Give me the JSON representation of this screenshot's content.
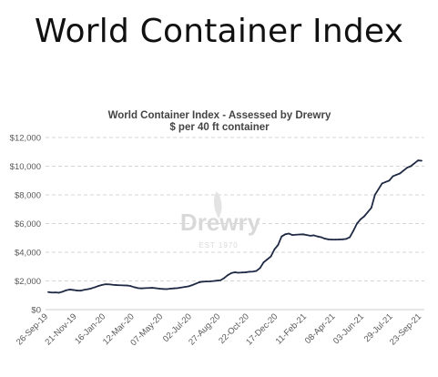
{
  "header": {
    "title": "World Container Index"
  },
  "watermark": {
    "brand": "Drewry",
    "est": "EST 1970"
  },
  "chart_data": {
    "type": "line",
    "title": "World Container Index - Assessed by Drewry",
    "subtitle": "$ per 40 ft container",
    "xlabel": "",
    "ylabel": "",
    "ylim": [
      0,
      12000
    ],
    "y_ticks": [
      0,
      2000,
      4000,
      6000,
      8000,
      10000,
      12000
    ],
    "y_tick_labels": [
      "$0",
      "$2,000",
      "$4,000",
      "$6,000",
      "$8,000",
      "$10,000",
      "$12,000"
    ],
    "x_tick_labels": [
      "26-Sep-19",
      "21-Nov-19",
      "16-Jan-20",
      "12-Mar-20",
      "07-May-20",
      "02-Jul-20",
      "27-Aug-20",
      "22-Oct-20",
      "17-Dec-20",
      "11-Feb-21",
      "08-Apr-21",
      "03-Jun-21",
      "29-Jul-21",
      "23-Sep-21"
    ],
    "grid": "horizontal-dashed",
    "line_color": "#1f2a44",
    "series": [
      {
        "x": [
          "26-Sep-19",
          "03-Oct-19",
          "10-Oct-19",
          "17-Oct-19",
          "24-Oct-19",
          "31-Oct-19",
          "07-Nov-19",
          "14-Nov-19",
          "21-Nov-19",
          "28-Nov-19",
          "05-Dec-19",
          "12-Dec-19",
          "19-Dec-19",
          "26-Dec-19",
          "02-Jan-20",
          "09-Jan-20",
          "16-Jan-20",
          "23-Jan-20",
          "30-Jan-20",
          "06-Feb-20",
          "13-Feb-20",
          "20-Feb-20",
          "27-Feb-20",
          "05-Mar-20",
          "12-Mar-20",
          "19-Mar-20",
          "26-Mar-20",
          "02-Apr-20",
          "09-Apr-20",
          "16-Apr-20",
          "23-Apr-20",
          "30-Apr-20",
          "07-May-20",
          "14-May-20",
          "21-May-20",
          "28-May-20",
          "04-Jun-20",
          "11-Jun-20",
          "18-Jun-20",
          "25-Jun-20",
          "02-Jul-20",
          "09-Jul-20",
          "16-Jul-20",
          "23-Jul-20",
          "30-Jul-20",
          "06-Aug-20",
          "13-Aug-20",
          "20-Aug-20",
          "27-Aug-20",
          "03-Sep-20",
          "10-Sep-20",
          "17-Sep-20",
          "24-Sep-20",
          "01-Oct-20",
          "08-Oct-20",
          "15-Oct-20",
          "22-Oct-20",
          "29-Oct-20",
          "05-Nov-20",
          "12-Nov-20",
          "19-Nov-20",
          "26-Nov-20",
          "03-Dec-20",
          "10-Dec-20",
          "17-Dec-20",
          "24-Dec-20",
          "31-Dec-20",
          "07-Jan-21",
          "14-Jan-21",
          "21-Jan-21",
          "28-Jan-21",
          "04-Feb-21",
          "11-Feb-21",
          "18-Feb-21",
          "25-Feb-21",
          "04-Mar-21",
          "11-Mar-21",
          "18-Mar-21",
          "25-Mar-21",
          "01-Apr-21",
          "08-Apr-21",
          "15-Apr-21",
          "22-Apr-21",
          "29-Apr-21",
          "06-May-21",
          "13-May-21",
          "20-May-21",
          "27-May-21",
          "03-Jun-21",
          "10-Jun-21",
          "17-Jun-21",
          "24-Jun-21",
          "01-Jul-21",
          "08-Jul-21",
          "15-Jul-21",
          "22-Jul-21",
          "29-Jul-21",
          "05-Aug-21",
          "12-Aug-21",
          "19-Aug-21",
          "26-Aug-21",
          "02-Sep-21",
          "09-Sep-21",
          "16-Sep-21",
          "23-Sep-21"
        ],
        "values": [
          1220,
          1190,
          1200,
          1180,
          1250,
          1350,
          1400,
          1370,
          1330,
          1320,
          1380,
          1420,
          1480,
          1560,
          1650,
          1720,
          1770,
          1760,
          1730,
          1710,
          1700,
          1690,
          1680,
          1640,
          1560,
          1500,
          1480,
          1500,
          1510,
          1520,
          1490,
          1460,
          1440,
          1430,
          1460,
          1480,
          1500,
          1540,
          1580,
          1620,
          1700,
          1800,
          1900,
          1950,
          1960,
          1970,
          1990,
          2020,
          2050,
          2200,
          2400,
          2550,
          2600,
          2570,
          2590,
          2600,
          2640,
          2650,
          2700,
          2900,
          3300,
          3500,
          3700,
          4200,
          4500,
          5100,
          5250,
          5300,
          5200,
          5220,
          5240,
          5250,
          5200,
          5150,
          5180,
          5100,
          5050,
          4950,
          4900,
          4880,
          4880,
          4890,
          4900,
          4930,
          5050,
          5500,
          6000,
          6300,
          6500,
          6800,
          7100,
          8000,
          8400,
          8800,
          8900,
          9000,
          9300,
          9400,
          9500,
          9700,
          9900,
          10000,
          10200,
          10400,
          10380
        ]
      }
    ]
  }
}
